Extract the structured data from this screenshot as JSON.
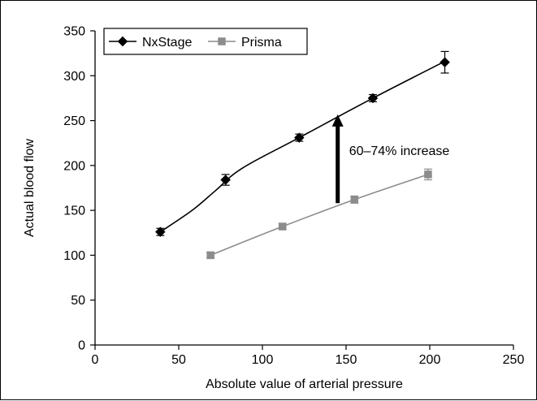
{
  "chart_data": {
    "type": "line",
    "title": "",
    "xlabel": "Absolute value of arterial pressure",
    "ylabel": "Actual blood flow",
    "xlim": [
      0,
      250
    ],
    "ylim": [
      0,
      350
    ],
    "xticks": [
      0,
      50,
      100,
      150,
      200,
      250
    ],
    "yticks": [
      0,
      50,
      100,
      150,
      200,
      250,
      300,
      350
    ],
    "grid": false,
    "legend_position": "top-left",
    "series": [
      {
        "name": "NxStage",
        "color": "#000000",
        "marker": "diamond",
        "points": [
          {
            "x": 39,
            "y": 126,
            "err": 4
          },
          {
            "x": 78,
            "y": 184,
            "err": 6
          },
          {
            "x": 122,
            "y": 231,
            "err": 4
          },
          {
            "x": 166,
            "y": 275,
            "err": 4
          },
          {
            "x": 209,
            "y": 315,
            "err": 12
          }
        ],
        "curve": [
          {
            "x": 39,
            "y": 126
          },
          {
            "x": 58,
            "y": 150
          },
          {
            "x": 72,
            "y": 172
          },
          {
            "x": 88,
            "y": 197
          },
          {
            "x": 122,
            "y": 231
          },
          {
            "x": 166,
            "y": 275
          },
          {
            "x": 209,
            "y": 316
          }
        ]
      },
      {
        "name": "Prisma",
        "color": "#8c8c8c",
        "marker": "square",
        "points": [
          {
            "x": 69,
            "y": 100,
            "err": 3
          },
          {
            "x": 112,
            "y": 132,
            "err": 3
          },
          {
            "x": 155,
            "y": 162,
            "err": 4
          },
          {
            "x": 199,
            "y": 190,
            "err": 6
          }
        ],
        "curve": [
          {
            "x": 69,
            "y": 100
          },
          {
            "x": 112,
            "y": 132
          },
          {
            "x": 155,
            "y": 162
          },
          {
            "x": 199,
            "y": 190
          }
        ]
      }
    ],
    "annotations": [
      {
        "text": "60–74% increase",
        "arrow_from": {
          "x": 145,
          "y": 158
        },
        "arrow_to": {
          "x": 145,
          "y": 257
        }
      }
    ]
  }
}
